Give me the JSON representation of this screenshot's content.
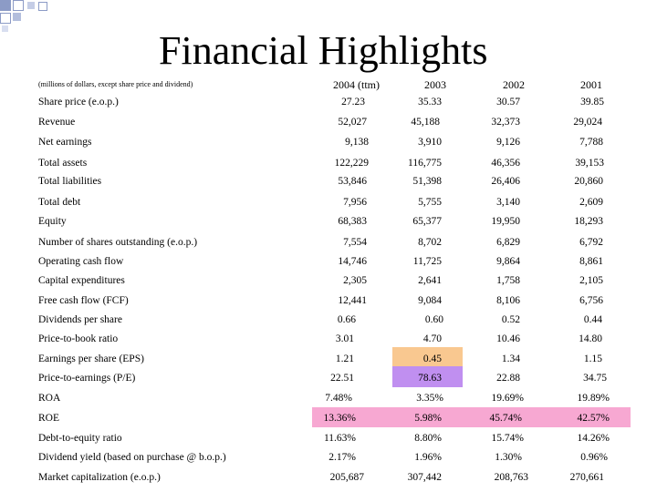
{
  "title": "Financial Highlights",
  "units_note": "(millions of dollars, except share price and dividend)",
  "columns": [
    "2004 (ttm)",
    "2003",
    "2002",
    "2001"
  ],
  "rows": [
    {
      "label": "Share price (e.o.p.)",
      "values": [
        "27.23",
        "35.33",
        "30.57",
        "39.85"
      ]
    },
    {
      "label": "Revenue",
      "values": [
        "52,027",
        "45,188",
        "32,373",
        "29,024"
      ]
    },
    {
      "label": "Net earnings",
      "values": [
        "9,138",
        "3,910",
        "9,126",
        "7,788"
      ]
    },
    {
      "label": "Total assets",
      "values": [
        "122,229",
        "116,775",
        "46,356",
        "39,153"
      ]
    },
    {
      "label": "Total liabilities",
      "values": [
        "53,846",
        "51,398",
        "26,406",
        "20,860"
      ]
    },
    {
      "label": "Total debt",
      "values": [
        "7,956",
        "5,755",
        "3,140",
        "2,609"
      ]
    },
    {
      "label": "Equity",
      "values": [
        "68,383",
        "65,377",
        "19,950",
        "18,293"
      ]
    },
    {
      "label": "Number of shares outstanding (e.o.p.)",
      "values": [
        "7,554",
        "8,702",
        "6,829",
        "6,792"
      ]
    },
    {
      "label": "Operating cash flow",
      "values": [
        "14,746",
        "11,725",
        "9,864",
        "8,861"
      ]
    },
    {
      "label": "Capital expenditures",
      "values": [
        "2,305",
        "2,641",
        "1,758",
        "2,105"
      ]
    },
    {
      "label": "Free cash flow (FCF)",
      "values": [
        "12,441",
        "9,084",
        "8,106",
        "6,756"
      ]
    },
    {
      "label": "Dividends per share",
      "values": [
        "0.66",
        "0.60",
        "0.52",
        "0.44"
      ]
    },
    {
      "label": "Price-to-book ratio",
      "values": [
        "3.01",
        "4.70",
        "10.46",
        "14.80"
      ]
    },
    {
      "label": "Earnings per share (EPS)",
      "values": [
        "1.21",
        "0.45",
        "1.34",
        "1.15"
      ]
    },
    {
      "label": "Price-to-earnings (P/E)",
      "values": [
        "22.51",
        "78.63",
        "22.88",
        "34.75"
      ]
    },
    {
      "label": "ROA",
      "values": [
        "7.48%",
        "3.35%",
        "19.69%",
        "19.89%"
      ]
    },
    {
      "label": "ROE",
      "values": [
        "13.36%",
        "5.98%",
        "45.74%",
        "42.57%"
      ]
    },
    {
      "label": "Debt-to-equity ratio",
      "values": [
        "11.63%",
        "8.80%",
        "15.74%",
        "14.26%"
      ]
    },
    {
      "label": "Dividend yield (based on purchase @ b.o.p.)",
      "values": [
        "2.17%",
        "1.96%",
        "1.30%",
        "0.96%"
      ]
    },
    {
      "label": "Market capitalization (e.o.p.)",
      "values": [
        "205,687",
        "307,442",
        "208,763",
        "270,661"
      ]
    }
  ],
  "colors": {
    "eps_2003_highlight": "#f9c890",
    "pe_2003_highlight": "#c08ff0",
    "roe_highlight": "#f7a8d2",
    "deco_square": "#7f8fbf"
  }
}
